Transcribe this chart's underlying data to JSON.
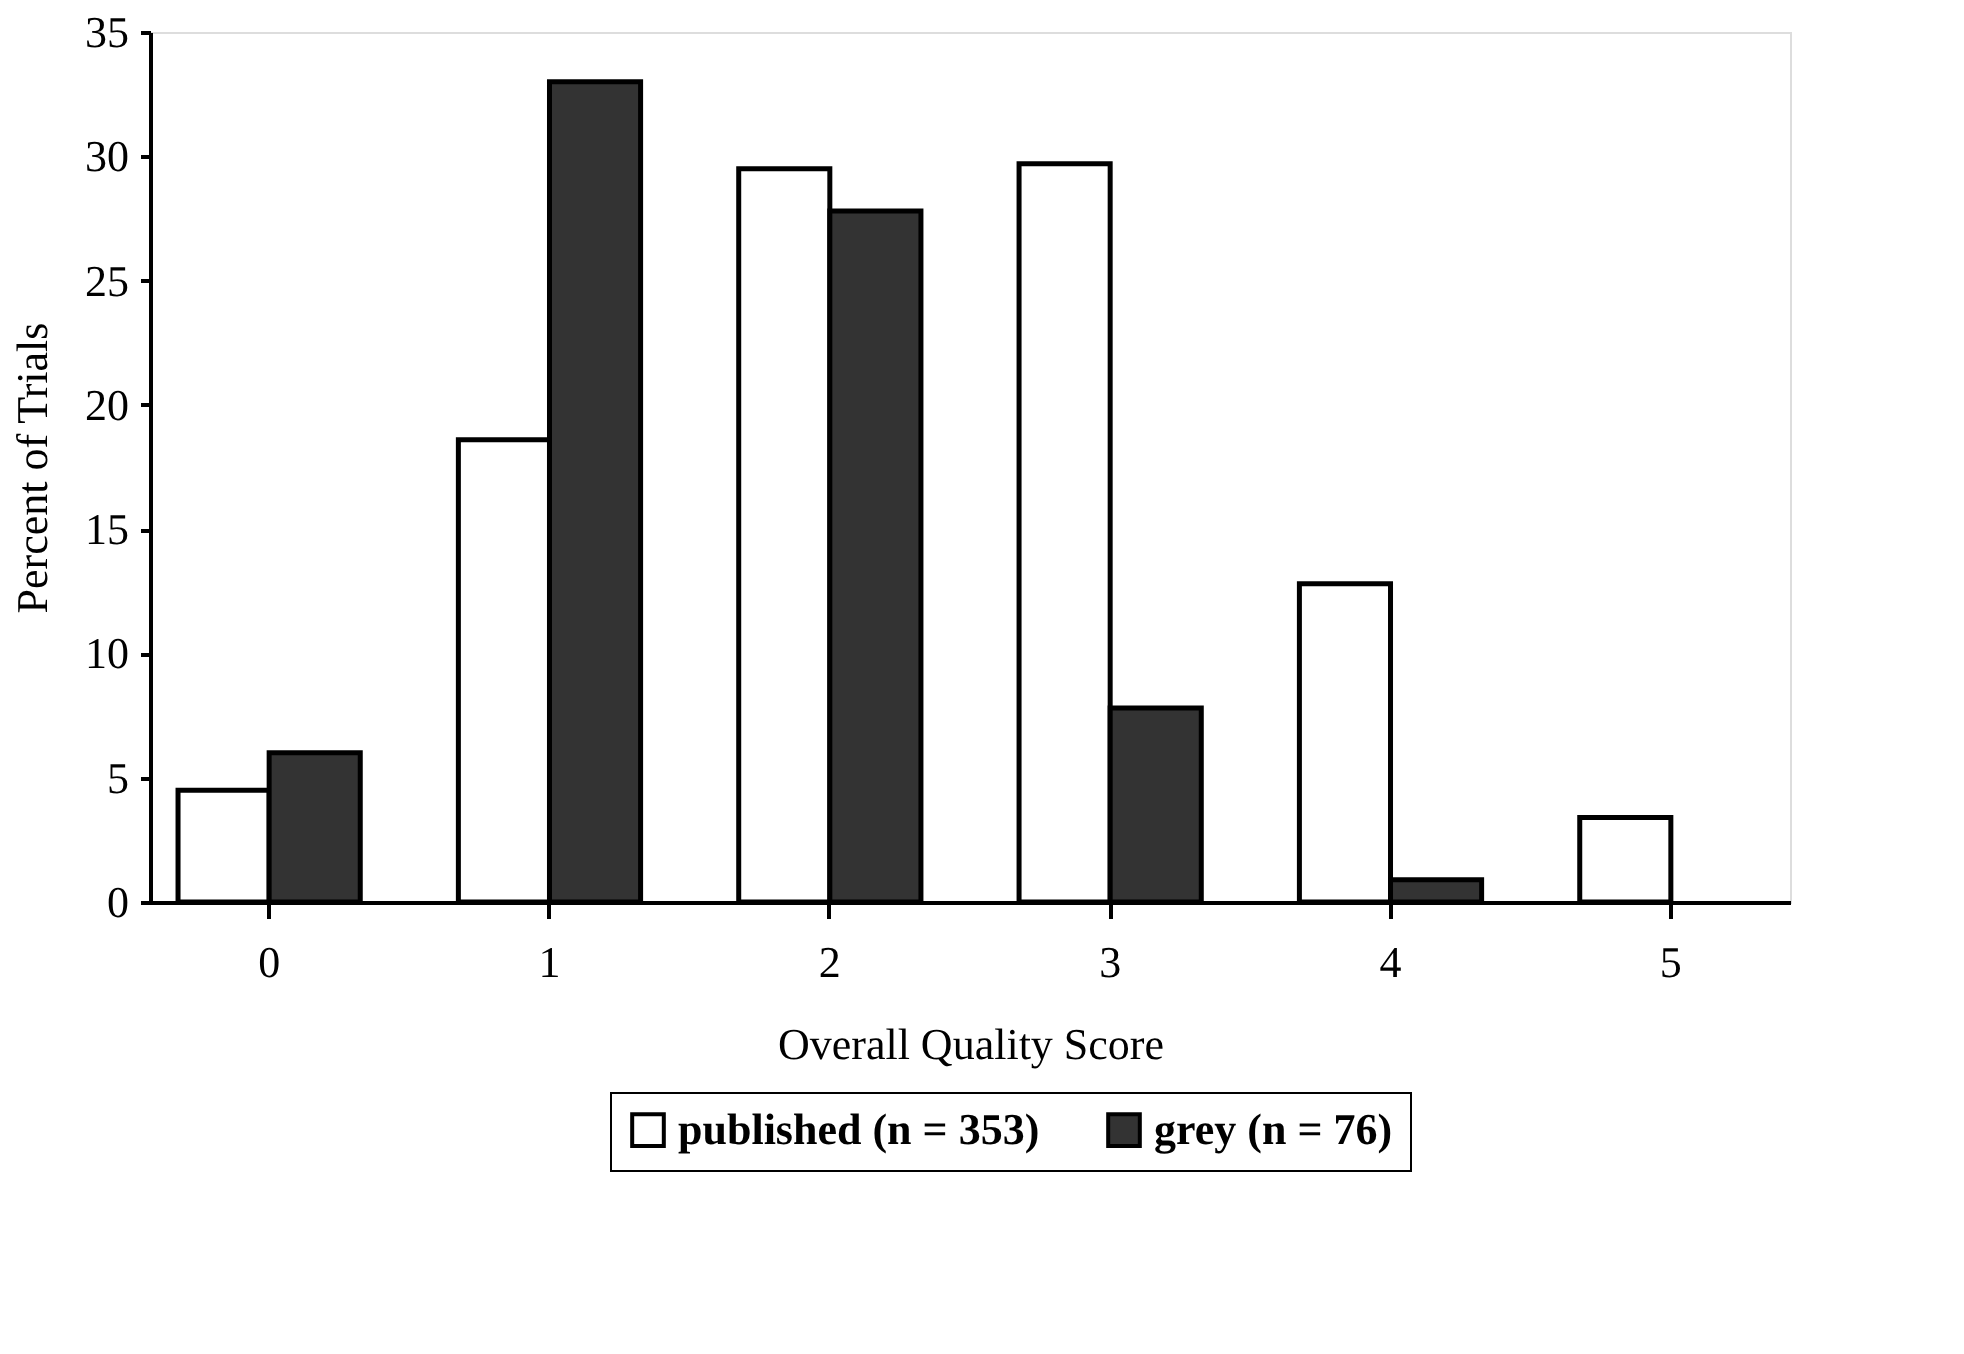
{
  "chart_data": {
    "type": "bar",
    "xlabel": "Overall Quality Score",
    "ylabel": "Percent of Trials",
    "categories": [
      "0",
      "1",
      "2",
      "3",
      "4",
      "5"
    ],
    "series": [
      {
        "name": "published (n = 353)",
        "color": "#ffffff",
        "values": [
          4.5,
          18.6,
          29.5,
          29.7,
          12.8,
          3.4
        ]
      },
      {
        "name": "grey (n = 76)",
        "color": "#333333",
        "values": [
          6.0,
          33.0,
          27.8,
          7.8,
          0.9,
          null
        ]
      }
    ],
    "ylim": [
      0,
      35
    ],
    "yticks": [
      0,
      5,
      10,
      15,
      20,
      25,
      30,
      35
    ],
    "grid": false,
    "legend": "bottom"
  }
}
